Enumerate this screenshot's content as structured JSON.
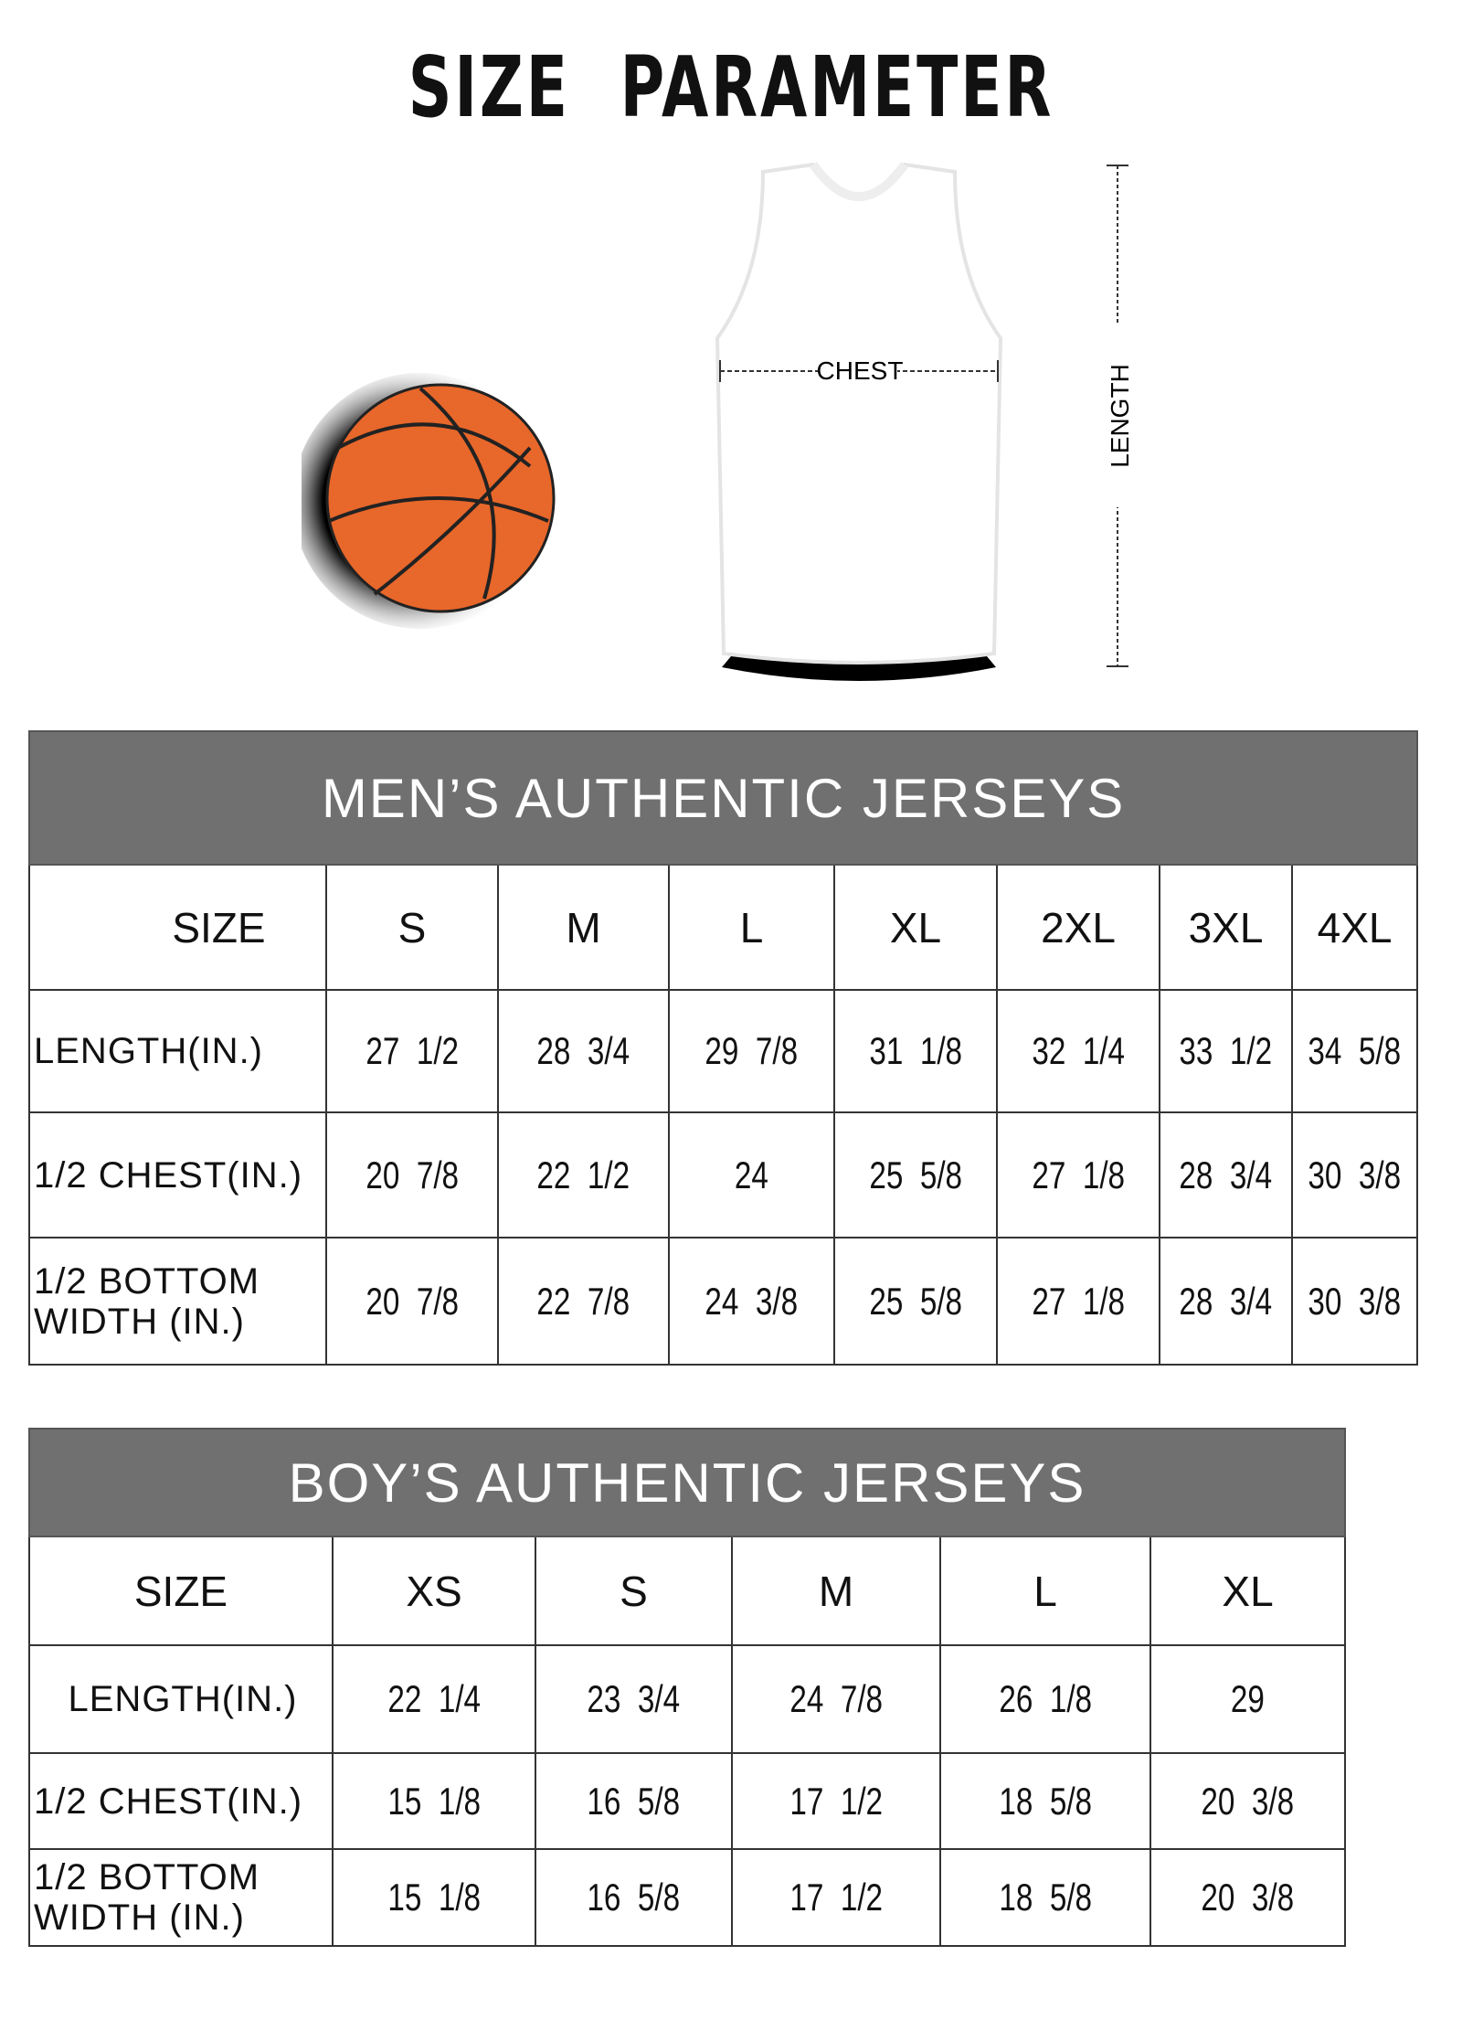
{
  "title": "SIZE PARAMETER",
  "diagram": {
    "chest_label": "CHEST",
    "length_label": "LENGTH",
    "ball_color": "#E8672A"
  },
  "colors": {
    "header_bg": "#707070",
    "header_text": "#ffffff"
  },
  "mens": {
    "title": "MEN’S AUTHENTIC JERSEYS",
    "size_label": "SIZE",
    "sizes": [
      "S",
      "M",
      "L",
      "XL",
      "2XL",
      "3XL",
      "4XL"
    ],
    "rows": [
      {
        "label": "LENGTH(IN.)",
        "values": [
          "27  1/2",
          "28  3/4",
          "29  7/8",
          "31  1/8",
          "32  1/4",
          "33  1/2",
          "34  5/8"
        ]
      },
      {
        "label": "1/2 CHEST(IN.)",
        "values": [
          "20  7/8",
          "22  1/2",
          "24",
          "25  5/8",
          "27  1/8",
          "28  3/4",
          "30  3/8"
        ]
      },
      {
        "label": "1/2 BOTTOM WIDTH  (IN.)",
        "values": [
          "20  7/8",
          "22  7/8",
          "24  3/8",
          "25  5/8",
          "27  1/8",
          "28  3/4",
          "30  3/8"
        ]
      }
    ]
  },
  "boys": {
    "title": "BOY’S AUTHENTIC JERSEYS",
    "size_label": "SIZE",
    "sizes": [
      "XS",
      "S",
      "M",
      "L",
      "XL"
    ],
    "rows": [
      {
        "label": "LENGTH(IN.)",
        "values": [
          "22  1/4",
          "23  3/4",
          "24  7/8",
          "26  1/8",
          "29"
        ]
      },
      {
        "label": "1/2 CHEST(IN.)",
        "values": [
          "15  1/8",
          "16  5/8",
          "17  1/2",
          "18  5/8",
          "20  3/8"
        ]
      },
      {
        "label": "1/2 BOTTOM WIDTH  (IN.)",
        "values": [
          "15  1/8",
          "16  5/8",
          "17  1/2",
          "18  5/8",
          "20  3/8"
        ]
      }
    ]
  }
}
